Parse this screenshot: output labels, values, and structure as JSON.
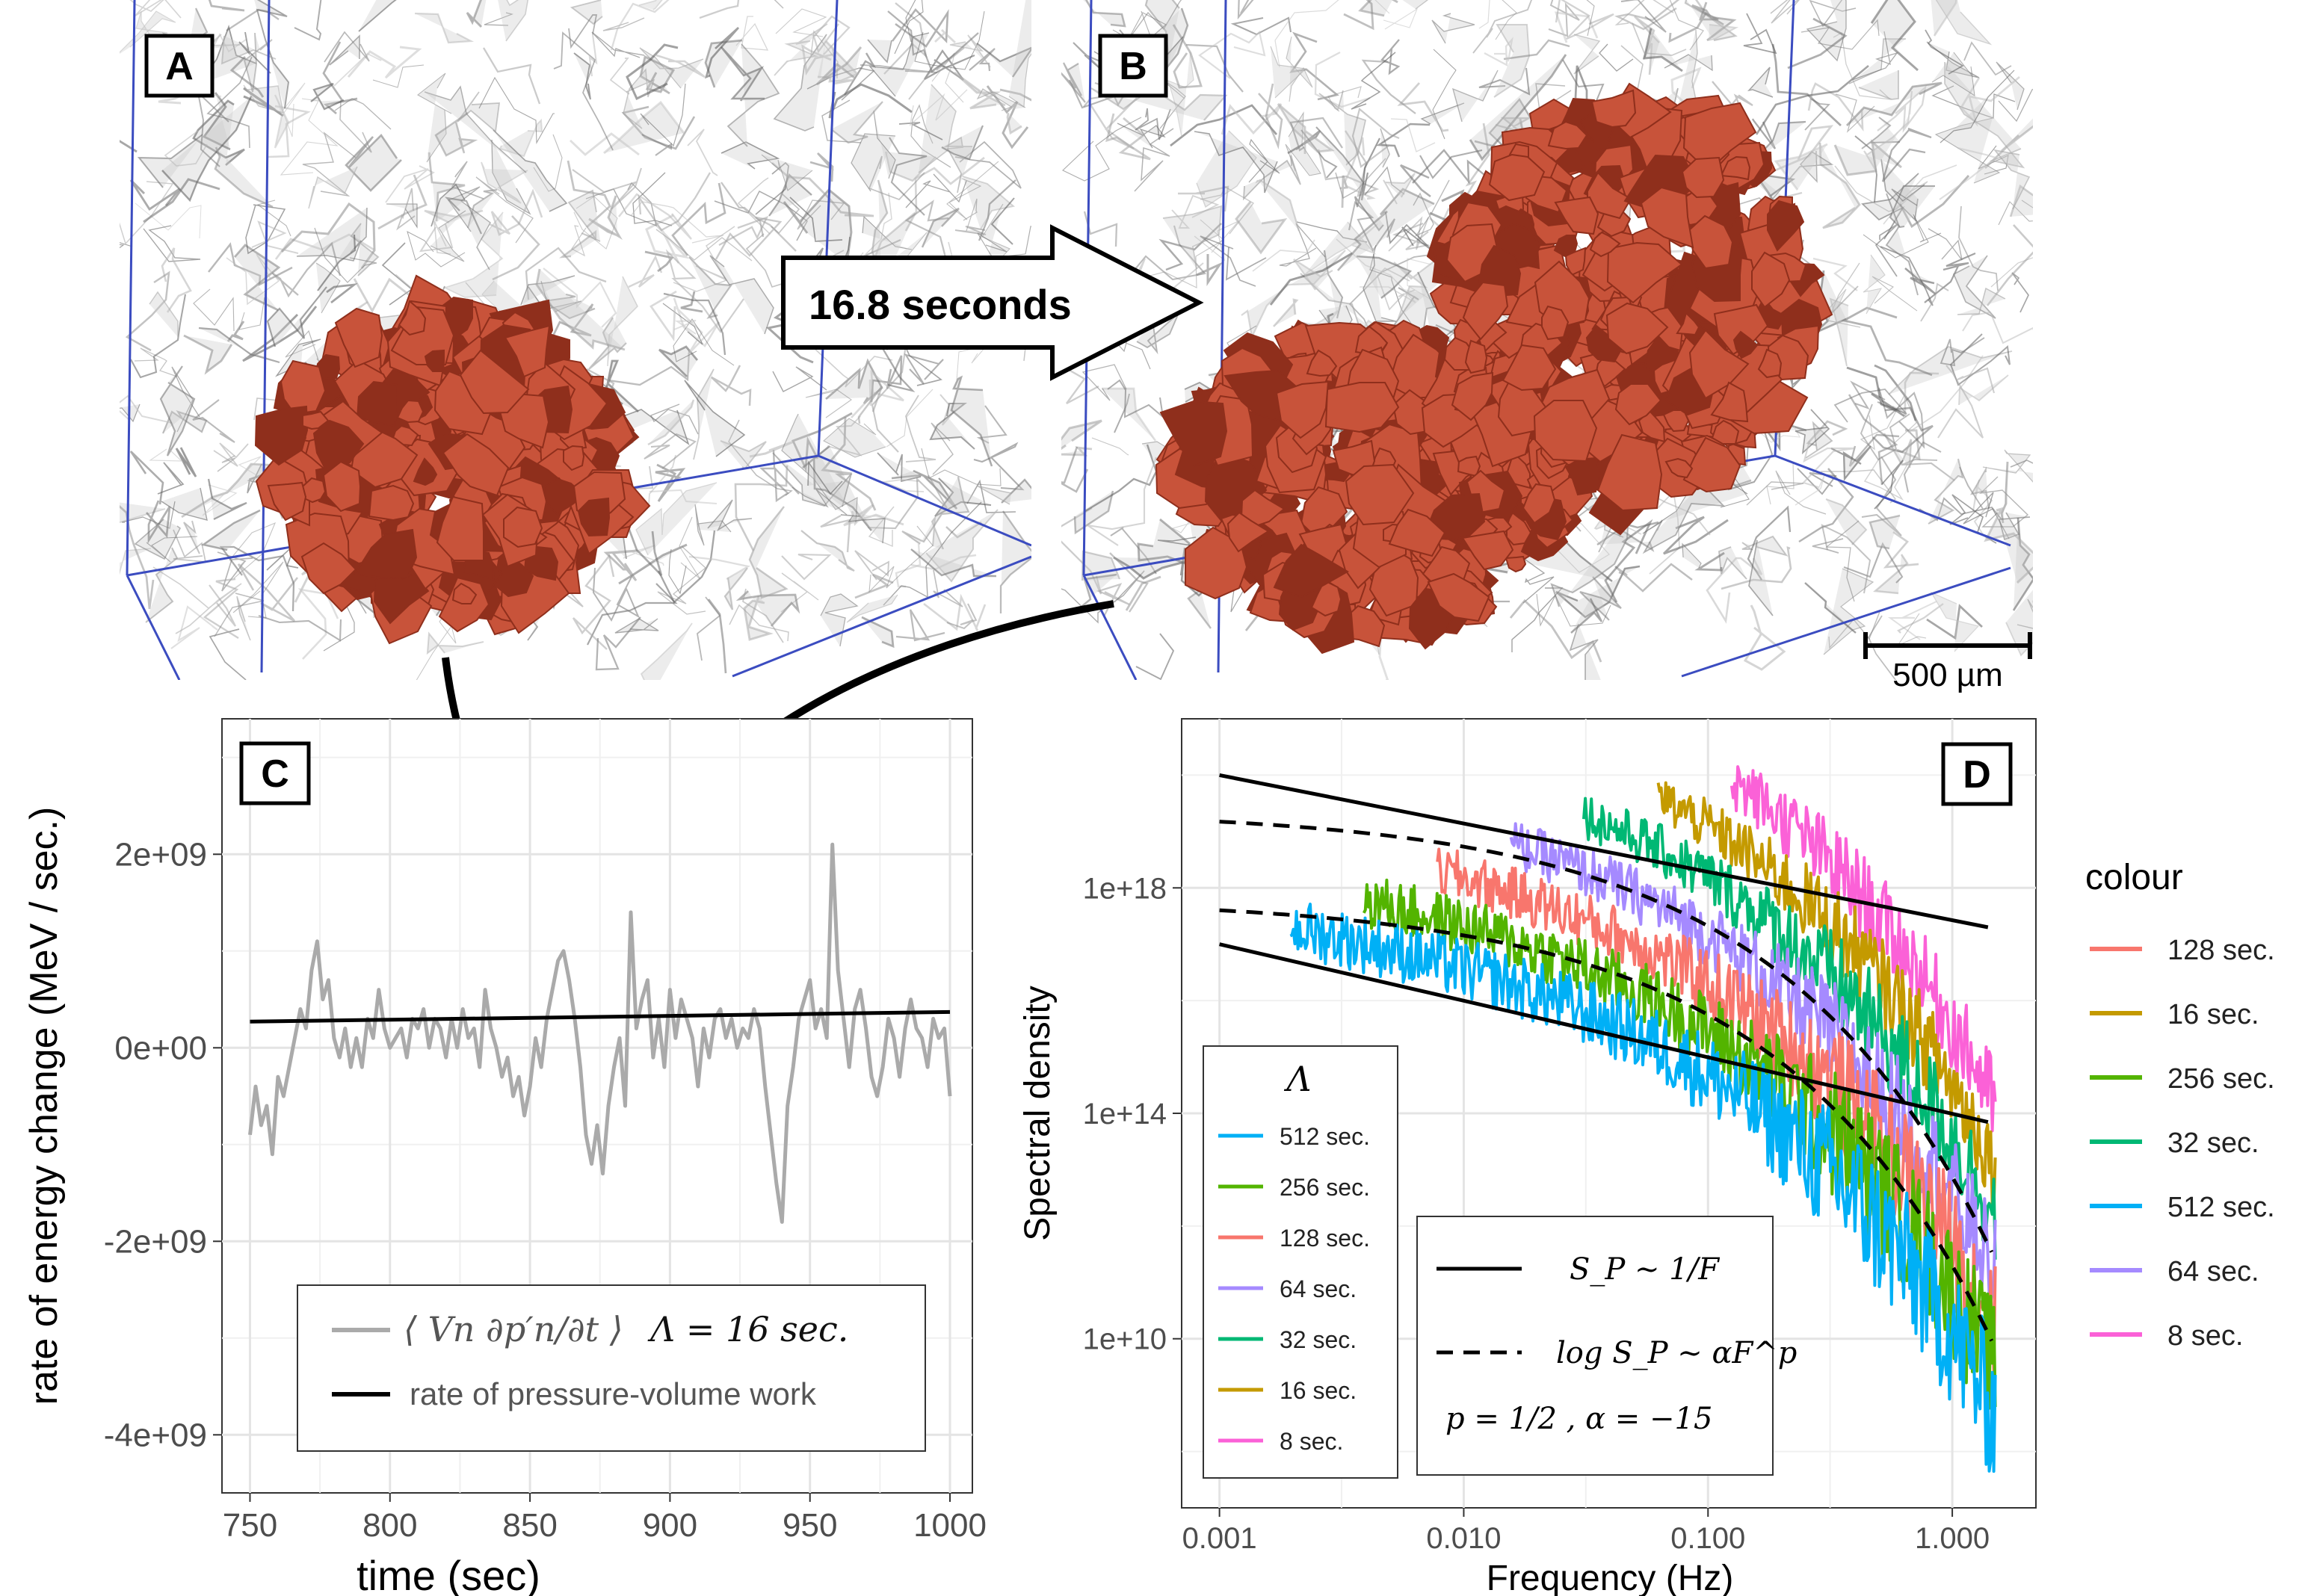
{
  "panels": {
    "a": {
      "label": "A"
    },
    "b": {
      "label": "B"
    },
    "c": {
      "label": "C"
    },
    "d": {
      "label": "D"
    }
  },
  "arrow_label": "16.8 seconds",
  "scale_bar": {
    "label": "500 µm",
    "length_um": 500
  },
  "colors": {
    "tissue": "#c8533a",
    "tissue_dark": "#8f2f1c",
    "box_lines": "#3b4cc0",
    "series": {
      "128 sec.": "#f8766d",
      "16 sec.": "#c49a00",
      "256 sec.": "#53b400",
      "32 sec.": "#00b874",
      "512 sec.": "#00b0f6",
      "64 sec.": "#a58aff",
      "8 sec.": "#fb61d7"
    }
  },
  "chart_data": [
    {
      "type": "line",
      "panel": "C",
      "title": "",
      "xlabel": "time (sec)",
      "ylabel": "rate of energy change (MeV / sec.)",
      "xlim": [
        740,
        1008
      ],
      "ylim": [
        -4600000000.0,
        3400000000.0
      ],
      "x_ticks": [
        750,
        800,
        850,
        900,
        950,
        1000
      ],
      "x_tick_labels": [
        "750",
        "800",
        "850",
        "900",
        "950",
        "1000"
      ],
      "y_ticks": [
        -4000000000.0,
        -2000000000.0,
        0,
        2000000000.0
      ],
      "y_tick_labels": [
        "-4e+09",
        "-2e+09",
        "0e+00",
        "2e+09"
      ],
      "grid": true,
      "legend": {
        "position": "bottom",
        "entries": [
          {
            "name": "⟨ Vn ∂p′n/∂t ⟩",
            "style": "grey"
          },
          {
            "name": "rate of pressure-volume work",
            "style": "black"
          }
        ],
        "note": "Λ = 16 sec."
      },
      "series": [
        {
          "name": "⟨ Vn ∂p′n/∂t ⟩",
          "color": "#aaaaaa",
          "x": [
            750,
            752,
            754,
            756,
            758,
            760,
            762,
            764,
            766,
            768,
            770,
            772,
            774,
            776,
            778,
            780,
            782,
            784,
            786,
            788,
            790,
            792,
            794,
            796,
            798,
            800,
            802,
            804,
            806,
            808,
            810,
            812,
            814,
            816,
            818,
            820,
            822,
            824,
            826,
            828,
            830,
            832,
            834,
            836,
            838,
            840,
            842,
            844,
            846,
            848,
            850,
            852,
            854,
            856,
            858,
            860,
            862,
            864,
            866,
            868,
            870,
            872,
            874,
            876,
            878,
            880,
            882,
            884,
            886,
            888,
            890,
            892,
            894,
            896,
            898,
            900,
            902,
            904,
            906,
            908,
            910,
            912,
            914,
            916,
            918,
            920,
            922,
            924,
            926,
            928,
            930,
            932,
            934,
            936,
            938,
            940,
            942,
            944,
            946,
            948,
            950,
            952,
            954,
            956,
            958,
            960,
            962,
            964,
            966,
            968,
            970,
            972,
            974,
            976,
            978,
            980,
            982,
            984,
            986,
            988,
            990,
            992,
            994,
            996,
            998,
            1000
          ],
          "values": [
            -900000000.0,
            -400000000.0,
            -800000000.0,
            -600000000.0,
            -1100000000.0,
            -300000000.0,
            -500000000.0,
            -200000000.0,
            100000000.0,
            400000000.0,
            200000000.0,
            800000000.0,
            1100000000.0,
            500000000.0,
            700000000.0,
            100000000.0,
            -100000000.0,
            200000000.0,
            -200000000.0,
            100000000.0,
            -200000000.0,
            300000000.0,
            100000000.0,
            600000000.0,
            200000000.0,
            0.0,
            100000000.0,
            200000000.0,
            -100000000.0,
            300000000.0,
            200000000.0,
            400000000.0,
            0.0,
            300000000.0,
            200000000.0,
            -100000000.0,
            300000000.0,
            0.0,
            400000000.0,
            100000000.0,
            200000000.0,
            -200000000.0,
            600000000.0,
            200000000.0,
            0.0,
            -300000000.0,
            -100000000.0,
            -500000000.0,
            -300000000.0,
            -700000000.0,
            -400000000.0,
            100000000.0,
            -200000000.0,
            300000000.0,
            600000000.0,
            900000000.0,
            1000000000.0,
            700000000.0,
            300000000.0,
            -200000000.0,
            -900000000.0,
            -1200000000.0,
            -800000000.0,
            -1300000000.0,
            -600000000.0,
            -200000000.0,
            100000000.0,
            -600000000.0,
            1400000000.0,
            200000000.0,
            500000000.0,
            700000000.0,
            -100000000.0,
            300000000.0,
            -200000000.0,
            600000000.0,
            100000000.0,
            500000000.0,
            300000000.0,
            100000000.0,
            -400000000.0,
            200000000.0,
            -100000000.0,
            300000000.0,
            400000000.0,
            100000000.0,
            300000000.0,
            0.0,
            200000000.0,
            100000000.0,
            400000000.0,
            200000000.0,
            -400000000.0,
            -900000000.0,
            -1400000000.0,
            -1800000000.0,
            -600000000.0,
            -200000000.0,
            300000000.0,
            500000000.0,
            700000000.0,
            200000000.0,
            400000000.0,
            100000000.0,
            2100000000.0,
            800000000.0,
            300000000.0,
            -200000000.0,
            400000000.0,
            600000000.0,
            200000000.0,
            -300000000.0,
            -500000000.0,
            -200000000.0,
            300000000.0,
            100000000.0,
            -300000000.0,
            200000000.0,
            500000000.0,
            200000000.0,
            100000000.0,
            -200000000.0,
            300000000.0,
            100000000.0,
            200000000.0,
            -500000000.0
          ]
        },
        {
          "name": "rate of pressure-volume work",
          "color": "#000000",
          "x": [
            750,
            800,
            850,
            900,
            950,
            1000
          ],
          "values": [
            270000000.0,
            290000000.0,
            310000000.0,
            330000000.0,
            350000000.0,
            370000000.0
          ]
        }
      ]
    },
    {
      "type": "line",
      "panel": "D",
      "title": "",
      "xlabel": "Frequency (Hz)",
      "ylabel": "Spectral density",
      "x_scale": "log",
      "y_scale": "log",
      "xlim": [
        0.0007,
        2.2
      ],
      "ylim": [
        10000000.0,
        1e+21
      ],
      "x_ticks": [
        0.001,
        0.01,
        0.1,
        1
      ],
      "x_tick_labels": [
        "0.001",
        "0.010",
        "0.100",
        "1.000"
      ],
      "y_ticks": [
        10000000000.0,
        100000000000000.0,
        1e+18
      ],
      "y_tick_labels": [
        "1e+10",
        "1e+14",
        "1e+18"
      ],
      "grid": true,
      "legend_lambda": {
        "title": "Λ",
        "position": "bottom-left",
        "entries": [
          "512 sec.",
          "256 sec.",
          "128 sec.",
          "64 sec.",
          "32 sec.",
          "16 sec.",
          "8 sec."
        ]
      },
      "legend_colour": {
        "title": "colour",
        "position": "right",
        "entries": [
          "128 sec.",
          "16 sec.",
          "256 sec.",
          "32 sec.",
          "512 sec.",
          "64 sec.",
          "8 sec."
        ]
      },
      "legend_lines": {
        "position": "bottom-center",
        "entries": [
          {
            "style": "solid",
            "name": "S_P ∼ 1/F"
          },
          {
            "style": "dashed",
            "name": "log S_P ∼ αF^p"
          }
        ],
        "note": "p = 1/2 ,   α = −15"
      },
      "reference_lines": [
        {
          "name": "upper 1/F",
          "style": "solid",
          "x": [
            0.001,
            1.4
          ],
          "y": [
            1e+20,
            2e+17
          ]
        },
        {
          "name": "lower 1/F",
          "style": "solid",
          "x": [
            0.001,
            1.4
          ],
          "y": [
            1e+17,
            70000000000000.0
          ]
        },
        {
          "name": "upper stretched",
          "style": "dashed",
          "F0": 0.001,
          "S0": 1.5e+19,
          "alpha": -15,
          "p": 0.5
        },
        {
          "name": "lower stretched",
          "style": "dashed",
          "F0": 0.001,
          "S0": 4e+17,
          "alpha": -15,
          "p": 0.5
        }
      ],
      "series": [
        {
          "name": "512 sec.",
          "fmin": 0.00195,
          "level": 2e+17,
          "spread": 1.6,
          "noise": 1.3
        },
        {
          "name": "256 sec.",
          "fmin": 0.0039,
          "level": 6e+17,
          "spread": 1.3,
          "noise": 1.2
        },
        {
          "name": "128 sec.",
          "fmin": 0.0078,
          "level": 2e+18,
          "spread": 1.0,
          "noise": 1.1
        },
        {
          "name": "64 sec.",
          "fmin": 0.0156,
          "level": 6e+18,
          "spread": 0.7,
          "noise": 1.0
        },
        {
          "name": "32 sec.",
          "fmin": 0.031,
          "level": 2e+19,
          "spread": 0.5,
          "noise": 0.9
        },
        {
          "name": "16 sec.",
          "fmin": 0.0625,
          "level": 4e+19,
          "spread": 0.3,
          "noise": 0.8
        },
        {
          "name": "8 sec.",
          "fmin": 0.125,
          "level": 8e+19,
          "spread": 0.1,
          "noise": 0.8
        }
      ]
    }
  ]
}
